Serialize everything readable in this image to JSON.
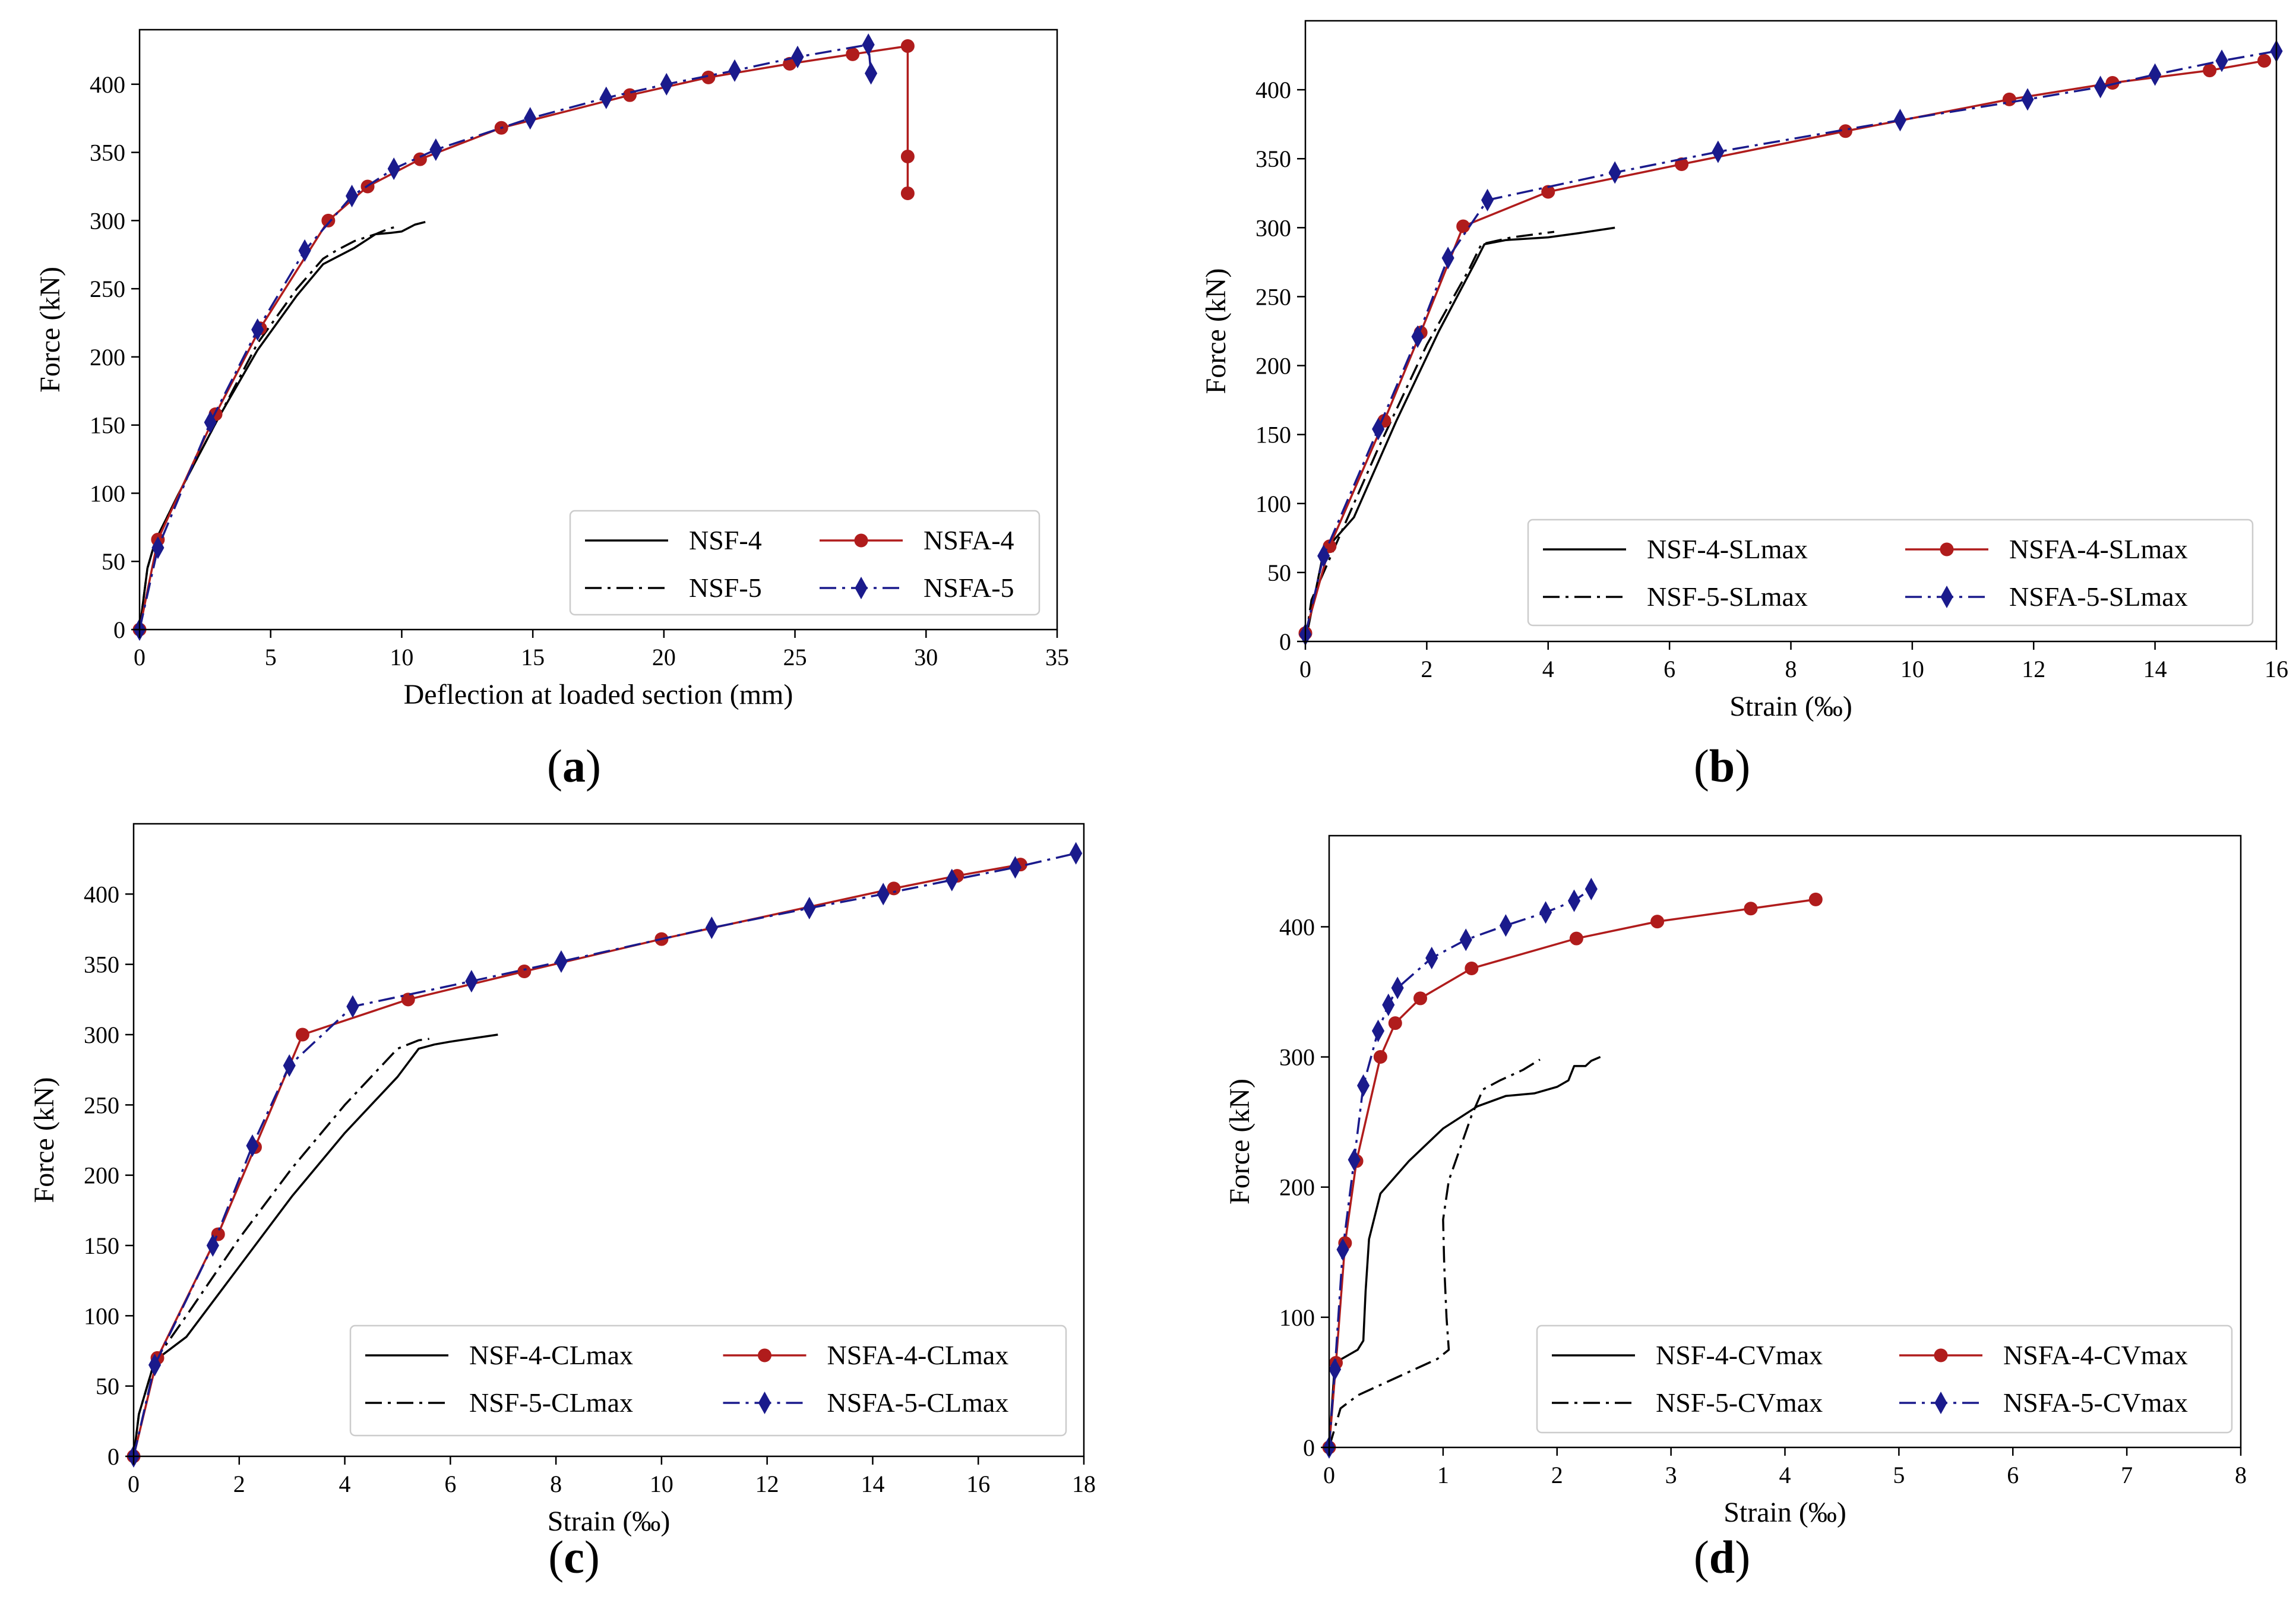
{
  "chart_data": [
    {
      "id": "a",
      "type": "line",
      "caption_open": "(",
      "caption_letter": "a",
      "caption_close": ")",
      "xlabel": "Deflection at loaded section (mm)",
      "ylabel": "Force (kN)",
      "xlim": [
        0,
        35
      ],
      "ylim": [
        0,
        440
      ],
      "xticks": [
        0,
        5,
        10,
        15,
        20,
        25,
        30,
        35
      ],
      "yticks": [
        0,
        50,
        100,
        150,
        200,
        250,
        300,
        350,
        400
      ],
      "grid": false,
      "legend_position": "lower-right",
      "series": [
        {
          "name": "NSF-4",
          "color": "#000000",
          "dash": "solid",
          "marker": "none",
          "x": [
            0,
            0.3,
            0.6,
            1.5,
            3,
            4.5,
            6,
            7,
            7.5,
            8.2,
            9,
            9.6,
            10,
            10.5,
            10.9
          ],
          "y": [
            0,
            45,
            65,
            100,
            155,
            205,
            245,
            268,
            273,
            280,
            290,
            291,
            292,
            297,
            299
          ]
        },
        {
          "name": "NSF-5",
          "color": "#000000",
          "dash": "dashdot",
          "marker": "none",
          "x": [
            0,
            0.3,
            0.6,
            1.5,
            3,
            4.5,
            6,
            7,
            7.5,
            8.2,
            9,
            9.5,
            9.9
          ],
          "y": [
            0,
            45,
            65,
            100,
            155,
            210,
            250,
            272,
            278,
            285,
            290,
            294,
            296
          ]
        },
        {
          "name": "NSFA-4",
          "color": "#b01c1c",
          "dash": "solid",
          "marker": "circle",
          "x": [
            0,
            0.7,
            2.9,
            4.6,
            7.2,
            8.7,
            10.7,
            13.8,
            18.7,
            21.7,
            24.8,
            27.2,
            29.3,
            29.3,
            29.3
          ],
          "y": [
            0,
            66,
            158,
            221,
            300,
            325,
            345,
            368,
            392,
            405,
            415,
            422,
            428,
            347,
            320
          ]
        },
        {
          "name": "NSFA-5",
          "color": "#1a1a8c",
          "dash": "dashdot",
          "marker": "diamond",
          "x": [
            0,
            0.7,
            2.7,
            4.5,
            6.3,
            8.1,
            9.7,
            11.3,
            14.9,
            17.8,
            20.1,
            22.7,
            25.1,
            27.8,
            27.9
          ],
          "y": [
            0,
            60,
            152,
            220,
            278,
            318,
            338,
            352,
            375,
            390,
            400,
            410,
            420,
            429,
            408
          ]
        }
      ]
    },
    {
      "id": "b",
      "type": "line",
      "caption_open": "(",
      "caption_letter": "b",
      "caption_close": ")",
      "xlabel": "Strain (‰)",
      "ylabel": "Force (kN)",
      "xlim": [
        0,
        16
      ],
      "ylim": [
        0,
        450
      ],
      "xticks": [
        0,
        2,
        4,
        6,
        8,
        10,
        12,
        14,
        16
      ],
      "yticks": [
        0,
        50,
        100,
        150,
        200,
        250,
        300,
        350,
        400
      ],
      "grid": false,
      "legend_position": "lower-right",
      "series": [
        {
          "name": "NSF-4-SLmax",
          "color": "#000000",
          "dash": "solid",
          "marker": "none",
          "x": [
            0,
            0.3,
            0.8,
            1.5,
            2.2,
            2.8,
            2.95,
            3.3,
            4,
            4.5,
            5.1
          ],
          "y": [
            0,
            65,
            90,
            160,
            225,
            275,
            288,
            291,
            293,
            296,
            300
          ]
        },
        {
          "name": "NSF-5-SLmax",
          "color": "#000000",
          "dash": "dashdot",
          "marker": "none",
          "x": [
            0,
            0.1,
            0.5,
            1.2,
            2.0,
            2.7,
            2.9,
            3.4,
            4.1
          ],
          "y": [
            0,
            30,
            70,
            140,
            215,
            270,
            288,
            293,
            297
          ]
        },
        {
          "name": "NSFA-4-SLmax",
          "color": "#b01c1c",
          "dash": "solid",
          "marker": "circle",
          "x": [
            0,
            0.4,
            1.3,
            1.9,
            2.6,
            4.0,
            6.2,
            8.9,
            11.6,
            13.3,
            14.9,
            15.8
          ],
          "y": [
            6,
            69,
            160,
            224,
            301,
            326,
            346,
            370,
            393,
            405,
            414,
            421
          ]
        },
        {
          "name": "NSFA-5-SLmax",
          "color": "#1a1a8c",
          "dash": "dashdot",
          "marker": "diamond",
          "x": [
            0,
            0.3,
            1.2,
            1.85,
            2.35,
            3.0,
            5.1,
            6.8,
            9.8,
            11.9,
            13.1,
            14.0,
            15.1,
            16.0
          ],
          "y": [
            5,
            62,
            154,
            221,
            278,
            320,
            340,
            355,
            378,
            393,
            402,
            411,
            421,
            428
          ]
        }
      ]
    },
    {
      "id": "c",
      "type": "line",
      "caption_open": "(",
      "caption_letter": "c",
      "caption_close": ")",
      "xlabel": "Strain (‰)",
      "ylabel": "Force (kN)",
      "xlim": [
        0,
        18
      ],
      "ylim": [
        0,
        450
      ],
      "xticks": [
        0,
        2,
        4,
        6,
        8,
        10,
        12,
        14,
        16,
        18
      ],
      "yticks": [
        0,
        50,
        100,
        150,
        200,
        250,
        300,
        350,
        400
      ],
      "grid": false,
      "legend_position": "lower-right",
      "series": [
        {
          "name": "NSF-4-CLmax",
          "color": "#000000",
          "dash": "solid",
          "marker": "none",
          "x": [
            0,
            0.1,
            0.4,
            1.0,
            2.0,
            3.0,
            4.0,
            5.0,
            5.4,
            5.7,
            6.0,
            6.9
          ],
          "y": [
            0,
            30,
            68,
            85,
            135,
            185,
            230,
            270,
            290,
            293,
            295,
            300
          ]
        },
        {
          "name": "NSF-5-CLmax",
          "color": "#000000",
          "dash": "dashdot",
          "marker": "none",
          "x": [
            0,
            0.1,
            0.4,
            1.0,
            2.0,
            3.0,
            4.0,
            5.0,
            5.4,
            5.6
          ],
          "y": [
            0,
            30,
            68,
            100,
            155,
            205,
            250,
            290,
            296,
            297
          ]
        },
        {
          "name": "NSFA-4-CLmax",
          "color": "#b01c1c",
          "dash": "solid",
          "marker": "circle",
          "x": [
            0,
            0.45,
            1.6,
            2.3,
            3.2,
            5.2,
            7.4,
            10.0,
            14.4,
            15.6,
            16.8
          ],
          "y": [
            0,
            70,
            158,
            220,
            300,
            325,
            345,
            368,
            404,
            413,
            421
          ]
        },
        {
          "name": "NSFA-5-CLmax",
          "color": "#1a1a8c",
          "dash": "dashdot",
          "marker": "diamond",
          "x": [
            0,
            0.4,
            1.5,
            2.25,
            2.95,
            4.15,
            6.4,
            8.1,
            10.95,
            12.8,
            14.2,
            15.5,
            16.7,
            17.85
          ],
          "y": [
            0,
            65,
            150,
            221,
            278,
            320,
            338,
            352,
            376,
            390,
            400,
            410,
            419,
            429
          ]
        }
      ]
    },
    {
      "id": "d",
      "type": "line",
      "caption_open": "(",
      "caption_letter": "d",
      "caption_close": ")",
      "xlabel": "Strain (‰)",
      "ylabel": "Force (kN)",
      "xlim": [
        0,
        8
      ],
      "ylim": [
        0,
        470
      ],
      "xticks": [
        0,
        1,
        2,
        3,
        4,
        5,
        6,
        7,
        8
      ],
      "yticks": [
        0,
        100,
        200,
        300,
        400
      ],
      "grid": false,
      "legend_position": "lower-right",
      "series": [
        {
          "name": "NSF-4-CVmax",
          "color": "#000000",
          "dash": "solid",
          "marker": "none",
          "x": [
            0,
            0.05,
            0.15,
            0.25,
            0.3,
            0.32,
            0.35,
            0.45,
            0.7,
            1.0,
            1.3,
            1.55,
            1.8,
            2.0,
            2.1,
            2.15,
            2.25,
            2.3,
            2.38
          ],
          "y": [
            0,
            65,
            70,
            75,
            82,
            120,
            160,
            195,
            220,
            245,
            262,
            270,
            272,
            277,
            282,
            293,
            293,
            297,
            300
          ]
        },
        {
          "name": "NSF-5-CVmax",
          "color": "#000000",
          "dash": "dashdot",
          "marker": "none",
          "x": [
            0,
            0.1,
            0.25,
            0.5,
            0.75,
            0.95,
            1.05,
            1.03,
            1.01,
            1.0,
            1.05,
            1.15,
            1.25,
            1.35,
            1.5,
            1.7,
            1.85
          ],
          "y": [
            0,
            30,
            40,
            50,
            60,
            68,
            75,
            100,
            140,
            175,
            205,
            230,
            255,
            275,
            282,
            290,
            298
          ]
        },
        {
          "name": "NSFA-4-CVmax",
          "color": "#b01c1c",
          "dash": "solid",
          "marker": "circle",
          "x": [
            0,
            0.06,
            0.14,
            0.24,
            0.45,
            0.58,
            0.8,
            1.25,
            2.17,
            2.88,
            3.7,
            4.27
          ],
          "y": [
            0,
            65,
            157,
            220,
            300,
            326,
            345,
            368,
            391,
            404,
            414,
            421
          ]
        },
        {
          "name": "NSFA-5-CVmax",
          "color": "#1a1a8c",
          "dash": "dashdot",
          "marker": "diamond",
          "x": [
            0,
            0.05,
            0.12,
            0.22,
            0.3,
            0.43,
            0.52,
            0.6,
            0.9,
            1.2,
            1.55,
            1.9,
            2.15,
            2.3
          ],
          "y": [
            0,
            60,
            152,
            221,
            278,
            320,
            340,
            353,
            376,
            390,
            401,
            411,
            420,
            429
          ]
        }
      ]
    }
  ]
}
